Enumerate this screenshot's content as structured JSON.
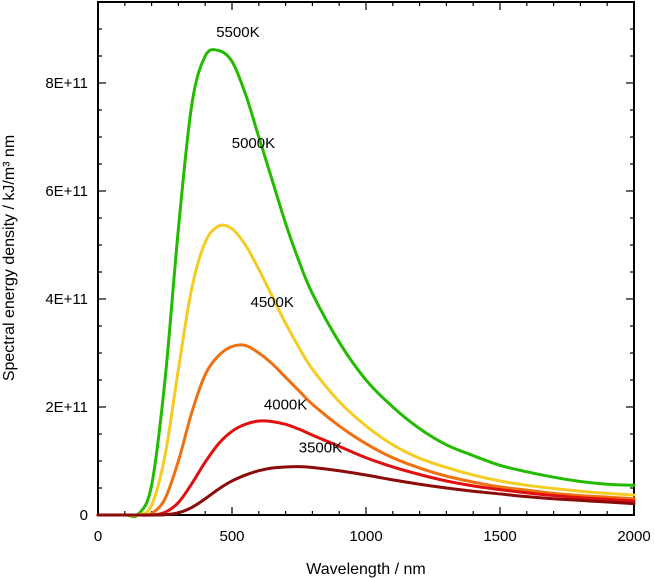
{
  "chart_data": {
    "type": "line",
    "title": "",
    "xlabel": "Wavelength / nm",
    "ylabel": "Spectral energy density / kJ/m³ nm",
    "xlim": [
      0,
      2000
    ],
    "ylim": [
      0,
      950000000000
    ],
    "xticks": [
      0,
      500,
      1000,
      1500,
      2000
    ],
    "xtick_labels": [
      "0",
      "500",
      "1000",
      "1500",
      "2000"
    ],
    "yticks": [
      0,
      200000000000,
      400000000000,
      600000000000,
      800000000000
    ],
    "ytick_labels": [
      "0",
      "2E+11",
      "4E+11",
      "6E+11",
      "8E+11"
    ],
    "grid": false,
    "x": [
      0,
      100,
      150,
      200,
      250,
      300,
      350,
      400,
      450,
      500,
      550,
      600,
      650,
      700,
      750,
      800,
      900,
      1000,
      1100,
      1200,
      1300,
      1400,
      1500,
      1600,
      1700,
      1800,
      1900,
      2000
    ],
    "series": [
      {
        "name": "5500K",
        "color": "#22bb00",
        "values": [
          0,
          0,
          1500000000,
          55000000000,
          250000000000,
          530000000000,
          760000000000,
          850000000000,
          860000000000,
          840000000000,
          780000000000,
          700000000000,
          620000000000,
          540000000000,
          470000000000,
          410000000000,
          320000000000,
          250000000000,
          200000000000,
          160000000000,
          130000000000,
          110000000000,
          92000000000,
          80000000000,
          70000000000,
          62000000000,
          57000000000,
          55000000000
        ]
      },
      {
        "name": "5000K",
        "color": "#f5cc22",
        "values": [
          0,
          0,
          300000000,
          18000000000,
          110000000000,
          270000000000,
          420000000000,
          505000000000,
          535000000000,
          530000000000,
          500000000000,
          455000000000,
          405000000000,
          355000000000,
          310000000000,
          270000000000,
          210000000000,
          165000000000,
          130000000000,
          105000000000,
          88000000000,
          74000000000,
          63000000000,
          55000000000,
          49000000000,
          44000000000,
          40000000000,
          37000000000
        ]
      },
      {
        "name": "4500K",
        "color": "#f07010",
        "values": [
          0,
          0,
          0,
          3000000000,
          30000000000,
          100000000000,
          190000000000,
          260000000000,
          295000000000,
          312000000000,
          314000000000,
          300000000000,
          280000000000,
          255000000000,
          230000000000,
          205000000000,
          165000000000,
          132000000000,
          106000000000,
          87000000000,
          72000000000,
          61000000000,
          52000000000,
          46000000000,
          40000000000,
          36000000000,
          33000000000,
          30000000000
        ]
      },
      {
        "name": "4000K",
        "color": "#e01010",
        "values": [
          0,
          0,
          0,
          0,
          5000000000,
          23000000000,
          58000000000,
          98000000000,
          132000000000,
          155000000000,
          168000000000,
          174000000000,
          173000000000,
          168000000000,
          159000000000,
          148000000000,
          127000000000,
          106000000000,
          89000000000,
          75000000000,
          63000000000,
          54000000000,
          47000000000,
          41000000000,
          36000000000,
          32000000000,
          29000000000,
          26000000000
        ]
      },
      {
        "name": "3500K",
        "color": "#8b0a0a",
        "values": [
          0,
          0,
          0,
          0,
          500000000,
          4000000000,
          14000000000,
          30000000000,
          48000000000,
          63000000000,
          74000000000,
          82000000000,
          87000000000,
          89000000000,
          89500000000,
          88000000000,
          82000000000,
          74000000000,
          65000000000,
          57000000000,
          50000000000,
          44000000000,
          39000000000,
          34000000000,
          30000000000,
          27000000000,
          24000000000,
          21000000000
        ]
      }
    ],
    "annotations": [
      {
        "text": "5500K",
        "x": 522,
        "y": 885000000000
      },
      {
        "text": "5000K",
        "x": 580,
        "y": 680000000000
      },
      {
        "text": "4500K",
        "x": 650,
        "y": 385000000000
      },
      {
        "text": "4000K",
        "x": 700,
        "y": 195000000000
      },
      {
        "text": "3500K",
        "x": 830,
        "y": 116000000000
      }
    ]
  }
}
